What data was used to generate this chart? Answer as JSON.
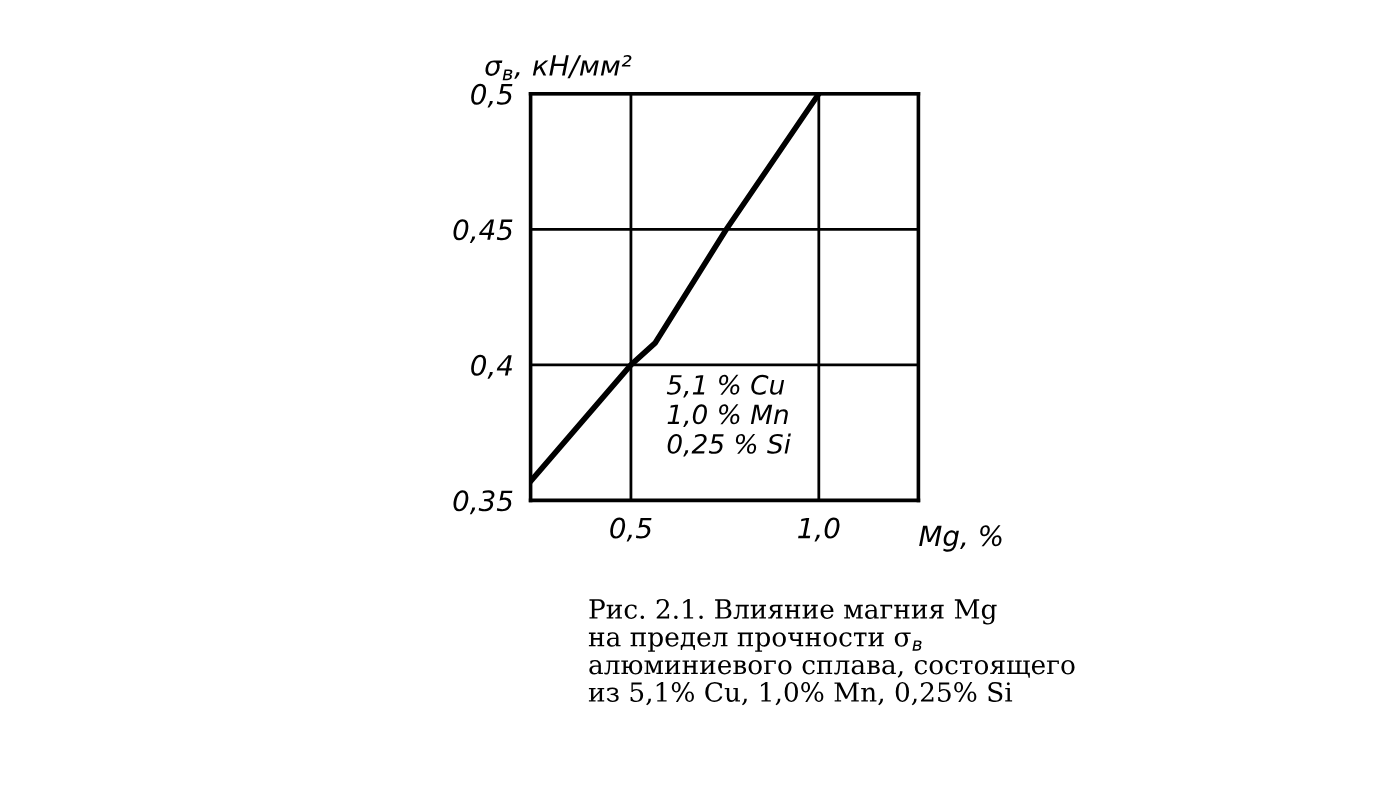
{
  "chart_data": {
    "type": "line",
    "ylabel": "σ$_{в}$, кН/мм²",
    "xlabel": "Mg, %",
    "x": [
      0.233,
      0.5,
      0.564,
      0.754,
      1.0
    ],
    "series": [
      {
        "color": "#000000",
        "values": [
          0.357,
          0.4,
          0.408,
          0.45,
          0.5
        ]
      }
    ],
    "xlim": [
      0.233,
      1.265
    ],
    "ylim": [
      0.35,
      0.5
    ],
    "xticks": [
      {
        "value": 0.5,
        "label": "0,5"
      },
      {
        "value": 1.0,
        "label": "1,0"
      }
    ],
    "yticks": [
      {
        "value": 0.35,
        "label": "0,35"
      },
      {
        "value": 0.4,
        "label": "0,4"
      },
      {
        "value": 0.45,
        "label": "0,45"
      },
      {
        "value": 0.5,
        "label": "0,5"
      }
    ],
    "grid": true,
    "line_style": "solid",
    "annotations": [
      "5,1 % Cu\n1,0 % Mn\n0,25 % Si",
      "Рис. 2.1. Влияние магния Mg\nна предел прочности σ$_{в}$\nалюминиевого сплава, состоящего\nиз 5,1% Cu, 1,0% Mn, 0,25% Si"
    ]
  }
}
